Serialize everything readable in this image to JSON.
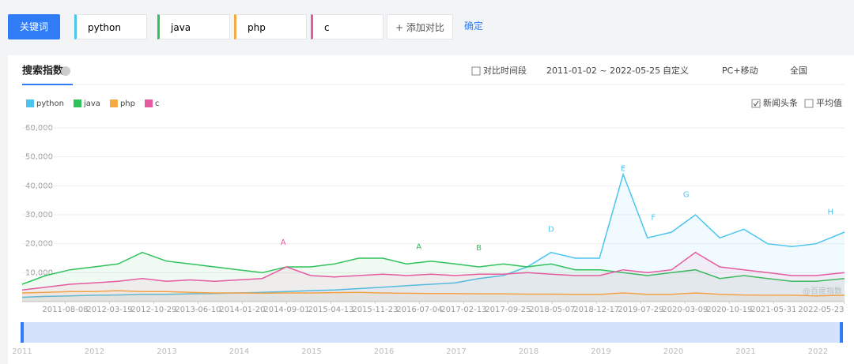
{
  "toolbar": {
    "keyword_button": "关键词",
    "keywords": [
      {
        "text": "python",
        "color": "#4dc4f0"
      },
      {
        "text": "java",
        "color": "#2fc25b"
      },
      {
        "text": "php",
        "color": "#f5a942"
      },
      {
        "text": "c",
        "color": "#e65aa0"
      }
    ],
    "add": "+ 添加对比",
    "confirm": "确定"
  },
  "panel": {
    "title": "搜索指数",
    "compare": "对比时间段",
    "range": "2011-01-02 ~ 2022-05-25",
    "custom": "自定义",
    "device": "PC+移动",
    "region": "全国",
    "news": "新闻头条",
    "average": "平均值",
    "watermark": "@百度指数"
  },
  "chart_data": {
    "type": "line",
    "x": [
      "2011-01-02",
      "2011-05-01",
      "2011-09-01",
      "2012-01-01",
      "2012-05-01",
      "2012-09-01",
      "2013-01-01",
      "2013-05-01",
      "2013-09-01",
      "2014-01-01",
      "2014-05-01",
      "2014-09-01",
      "2015-01-01",
      "2015-05-01",
      "2015-09-01",
      "2016-01-01",
      "2016-05-01",
      "2016-09-01",
      "2017-01-01",
      "2017-05-01",
      "2017-09-01",
      "2018-01-01",
      "2018-05-01",
      "2018-09-01",
      "2019-01-01",
      "2019-05-01",
      "2019-09-01",
      "2020-01-01",
      "2020-05-01",
      "2020-09-01",
      "2021-01-01",
      "2021-05-01",
      "2021-09-01",
      "2022-01-01",
      "2022-05-25"
    ],
    "series": [
      {
        "name": "python",
        "color": "#4dc4f0",
        "values": [
          1500,
          1800,
          2000,
          2200,
          2300,
          2500,
          2500,
          2700,
          2800,
          3000,
          3200,
          3500,
          3800,
          4000,
          4500,
          5000,
          5500,
          6000,
          6500,
          8000,
          9000,
          12000,
          17000,
          15000,
          15000,
          44000,
          22000,
          24000,
          30000,
          22000,
          25000,
          20000,
          19000,
          20000,
          24000
        ]
      },
      {
        "name": "java",
        "color": "#2fc25b",
        "values": [
          6000,
          9000,
          11000,
          12000,
          13000,
          17000,
          14000,
          13000,
          12000,
          11000,
          10000,
          12000,
          12000,
          13000,
          15000,
          15000,
          13000,
          14000,
          13000,
          12000,
          13000,
          12000,
          13000,
          11000,
          11000,
          10000,
          9000,
          10000,
          11000,
          8000,
          9000,
          8000,
          7000,
          7000,
          8000
        ]
      },
      {
        "name": "php",
        "color": "#f5a942",
        "values": [
          3000,
          3200,
          3500,
          3500,
          3800,
          3500,
          3500,
          3200,
          3000,
          3000,
          2900,
          3000,
          3000,
          3100,
          3200,
          3000,
          2900,
          2800,
          2800,
          2700,
          2700,
          2600,
          2600,
          2500,
          2500,
          3000,
          2500,
          2500,
          3000,
          2500,
          2300,
          2200,
          2200,
          2000,
          2200
        ]
      },
      {
        "name": "c",
        "color": "#e65aa0",
        "values": [
          4000,
          5000,
          6000,
          6500,
          7000,
          8000,
          7000,
          7500,
          7000,
          7500,
          8000,
          12000,
          9000,
          8500,
          9000,
          9500,
          9000,
          9500,
          9000,
          9500,
          9500,
          10000,
          9500,
          9000,
          9000,
          11000,
          10000,
          11000,
          17000,
          12000,
          11000,
          10000,
          9000,
          9000,
          10000
        ]
      }
    ],
    "xlim": [
      "2011-01-02",
      "2022-05-25"
    ],
    "xticks": [
      "2011-08-08",
      "2012-03-19",
      "2012-10-29",
      "2013-06-10",
      "2014-01-20",
      "2014-09-01",
      "2015-04-13",
      "2015-11-23",
      "2016-07-04",
      "2017-02-13",
      "2017-09-25",
      "2018-05-07",
      "2018-12-17",
      "2019-07-29",
      "2020-03-09",
      "2020-10-19",
      "2021-05-31",
      "2022-05-23"
    ],
    "ylim": [
      0,
      60000
    ],
    "yticks": [
      {
        "value": 10000,
        "label": "10,000"
      },
      {
        "value": 20000,
        "label": "20,000"
      },
      {
        "value": 30000,
        "label": "30,000"
      },
      {
        "value": 40000,
        "label": "40,000"
      },
      {
        "value": 50000,
        "label": "50,000"
      },
      {
        "value": 60000,
        "label": "60,000"
      }
    ],
    "grid": true,
    "annotations": [
      {
        "text": "A",
        "x": "2014-08-15",
        "y": 20500,
        "color": "#e65aa0"
      },
      {
        "text": "A",
        "x": "2016-07-01",
        "y": 19000,
        "color": "#2fc25b"
      },
      {
        "text": "B",
        "x": "2017-05-01",
        "y": 18500,
        "color": "#2fc25b"
      },
      {
        "text": "D",
        "x": "2018-05-01",
        "y": 25000,
        "color": "#4dc4f0"
      },
      {
        "text": "E",
        "x": "2019-05-01",
        "y": 46000,
        "color": "#4dc4f0"
      },
      {
        "text": "F",
        "x": "2019-10-01",
        "y": 29000,
        "color": "#4dc4f0"
      },
      {
        "text": "G",
        "x": "2020-03-15",
        "y": 37000,
        "color": "#4dc4f0"
      },
      {
        "text": "H",
        "x": "2022-03-15",
        "y": 31000,
        "color": "#4dc4f0"
      }
    ]
  },
  "slider": {
    "years": [
      "2011",
      "2012",
      "2013",
      "2014",
      "2015",
      "2016",
      "2017",
      "2018",
      "2019",
      "2020",
      "2021",
      "2022"
    ]
  }
}
